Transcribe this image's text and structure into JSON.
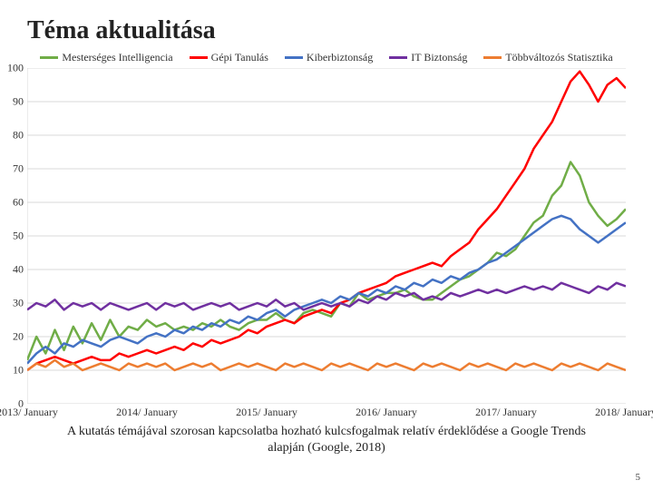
{
  "title": "Téma aktualitása",
  "caption": "A kutatás témájával szorosan kapcsolatba hozható kulcsfogalmak relatív érdeklődése a Google Trends alapján (Google, 2018)",
  "page_number": "5",
  "chart": {
    "type": "line",
    "background_color": "#ffffff",
    "grid_color": "#d9d9d9",
    "axis_color": "#d9d9d9",
    "label_fontsize": 12,
    "line_width": 2.5,
    "ylim": [
      0,
      100
    ],
    "ytick_step": 10,
    "yticks": [
      0,
      10,
      20,
      30,
      40,
      50,
      60,
      70,
      80,
      90,
      100
    ],
    "x_points": 66,
    "xtick_indices": [
      0,
      13,
      26,
      39,
      52,
      65
    ],
    "xtick_labels": [
      "2013/ January",
      "2014/ January",
      "2015/ January",
      "2016/ January",
      "2017/ January",
      "2018/ January"
    ],
    "series": [
      {
        "name": "Mesterséges Intelligencia",
        "color": "#70ad47",
        "values": [
          13,
          20,
          15,
          22,
          16,
          23,
          18,
          24,
          19,
          25,
          20,
          23,
          22,
          25,
          23,
          24,
          22,
          23,
          22,
          24,
          23,
          25,
          23,
          22,
          24,
          25,
          25,
          27,
          25,
          24,
          27,
          28,
          27,
          26,
          30,
          29,
          33,
          31,
          32,
          33,
          33,
          34,
          32,
          31,
          31,
          33,
          35,
          37,
          38,
          40,
          42,
          45,
          44,
          46,
          50,
          54,
          56,
          62,
          65,
          72,
          68,
          60,
          56,
          53,
          55,
          58
        ]
      },
      {
        "name": "Gépi Tanulás",
        "color": "#ff0000",
        "values": [
          10,
          12,
          13,
          14,
          13,
          12,
          13,
          14,
          13,
          13,
          15,
          14,
          15,
          16,
          15,
          16,
          17,
          16,
          18,
          17,
          19,
          18,
          19,
          20,
          22,
          21,
          23,
          24,
          25,
          24,
          26,
          27,
          28,
          27,
          30,
          31,
          33,
          34,
          35,
          36,
          38,
          39,
          40,
          41,
          42,
          41,
          44,
          46,
          48,
          52,
          55,
          58,
          62,
          66,
          70,
          76,
          80,
          84,
          90,
          96,
          99,
          95,
          90,
          95,
          97,
          94
        ]
      },
      {
        "name": "Kiberbiztonság",
        "color": "#4472c4",
        "values": [
          12,
          15,
          17,
          15,
          18,
          17,
          19,
          18,
          17,
          19,
          20,
          19,
          18,
          20,
          21,
          20,
          22,
          21,
          23,
          22,
          24,
          23,
          25,
          24,
          26,
          25,
          27,
          28,
          26,
          28,
          29,
          30,
          31,
          30,
          32,
          31,
          33,
          32,
          34,
          33,
          35,
          34,
          36,
          35,
          37,
          36,
          38,
          37,
          39,
          40,
          42,
          43,
          45,
          47,
          49,
          51,
          53,
          55,
          56,
          55,
          52,
          50,
          48,
          50,
          52,
          54
        ]
      },
      {
        "name": "IT Biztonság",
        "color": "#7030a0",
        "values": [
          28,
          30,
          29,
          31,
          28,
          30,
          29,
          30,
          28,
          30,
          29,
          28,
          29,
          30,
          28,
          30,
          29,
          30,
          28,
          29,
          30,
          29,
          30,
          28,
          29,
          30,
          29,
          31,
          29,
          30,
          28,
          29,
          30,
          29,
          30,
          29,
          31,
          30,
          32,
          31,
          33,
          32,
          33,
          31,
          32,
          31,
          33,
          32,
          33,
          34,
          33,
          34,
          33,
          34,
          35,
          34,
          35,
          34,
          36,
          35,
          34,
          33,
          35,
          34,
          36,
          35
        ]
      },
      {
        "name": "Többváltozós Statisztika",
        "color": "#ed7d31",
        "values": [
          10,
          12,
          11,
          13,
          11,
          12,
          10,
          11,
          12,
          11,
          10,
          12,
          11,
          12,
          11,
          12,
          10,
          11,
          12,
          11,
          12,
          10,
          11,
          12,
          11,
          12,
          11,
          10,
          12,
          11,
          12,
          11,
          10,
          12,
          11,
          12,
          11,
          10,
          12,
          11,
          12,
          11,
          10,
          12,
          11,
          12,
          11,
          10,
          12,
          11,
          12,
          11,
          10,
          12,
          11,
          12,
          11,
          10,
          12,
          11,
          12,
          11,
          10,
          12,
          11,
          10
        ]
      }
    ]
  }
}
